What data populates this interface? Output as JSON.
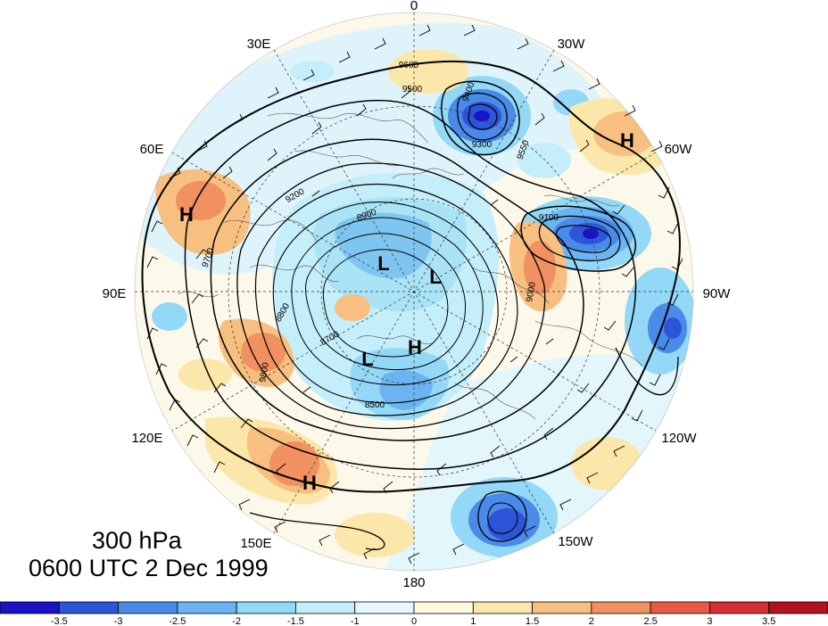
{
  "title": {
    "level": "300 hPa",
    "time": "0600 UTC 2 Dec 1999"
  },
  "longitude_labels": [
    "0",
    "30W",
    "60W",
    "90W",
    "120W",
    "150W",
    "180",
    "150E",
    "120E",
    "90E",
    "60E",
    "30E"
  ],
  "contour_labels": [
    "9600",
    "9500",
    "9400",
    "9300",
    "9550",
    "9100",
    "9200",
    "9700",
    "9800",
    "8700",
    "8800",
    "8900",
    "8500",
    "9000"
  ],
  "pressure_centers": [
    {
      "id": "high-atlantic",
      "label": "H"
    },
    {
      "id": "high-asia",
      "label": "H"
    },
    {
      "id": "high-pacific",
      "label": "H"
    },
    {
      "id": "high-arctic",
      "label": "H"
    },
    {
      "id": "low-siberia",
      "label": "L"
    },
    {
      "id": "low-canada",
      "label": "L"
    },
    {
      "id": "low-east-asia",
      "label": "L"
    }
  ],
  "colorbar": {
    "tick_labels": [
      "-3.5",
      "-3",
      "-2.5",
      "-2",
      "-1.5",
      "-1",
      "0",
      "1",
      "1.5",
      "2",
      "2.5",
      "3",
      "3.5"
    ],
    "colors": [
      "#1a12c6",
      "#2c55d8",
      "#4a8ae8",
      "#6ab4f2",
      "#93d8f7",
      "#c4eef9",
      "#e6f8fb",
      "#fffbe3",
      "#fbe7a9",
      "#f7bf80",
      "#f19060",
      "#e85a44",
      "#d52f35",
      "#b0121f"
    ]
  }
}
